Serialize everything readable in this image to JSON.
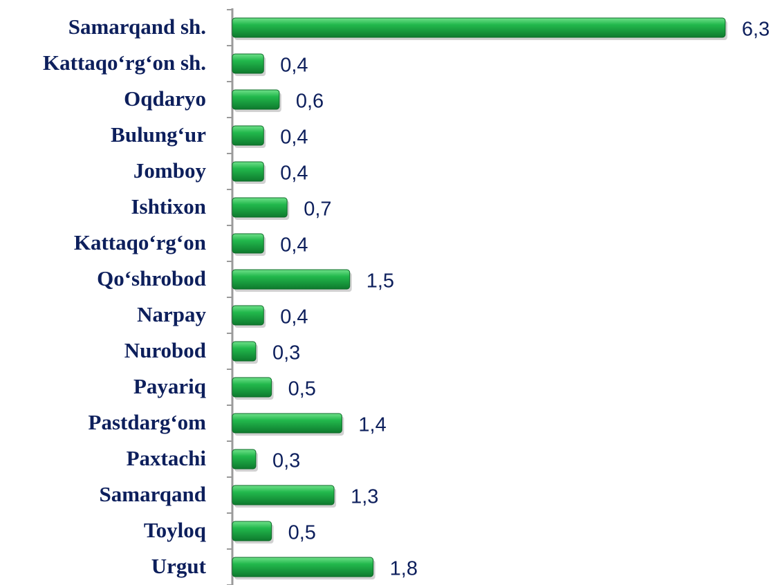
{
  "chart_data": {
    "type": "bar",
    "orientation": "horizontal",
    "categories": [
      "Samarqand sh.",
      "Kattaqo‘rg‘on sh.",
      "Oqdaryo",
      "Bulung‘ur",
      "Jomboy",
      "Ishtixon",
      "Kattaqo‘rg‘on",
      "Qo‘shrobod",
      "Narpay",
      "Nurobod",
      "Payariq",
      "Pastdarg‘om",
      "Paxtachi",
      "Samarqand",
      "Toyloq",
      "Urgut"
    ],
    "values": [
      6.3,
      0.4,
      0.6,
      0.4,
      0.4,
      0.7,
      0.4,
      1.5,
      0.4,
      0.3,
      0.5,
      1.4,
      0.3,
      1.3,
      0.5,
      1.8
    ],
    "value_labels": [
      "6,3",
      "0,4",
      "0,6",
      "0,4",
      "0,4",
      "0,7",
      "0,4",
      "1,5",
      "0,4",
      "0,3",
      "0,5",
      "1,4",
      "0,3",
      "1,3",
      "0,5",
      "1,8"
    ],
    "color": "#1aaa44",
    "xlim": [
      0,
      7
    ]
  }
}
